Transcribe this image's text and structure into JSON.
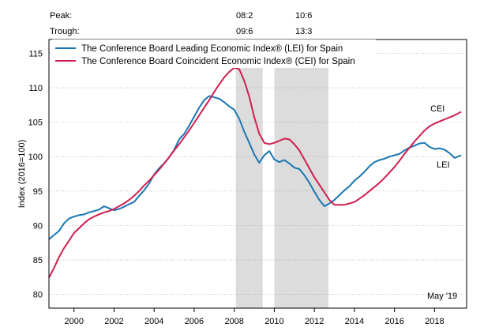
{
  "header": {
    "peak_label": "Peak:",
    "trough_label": "Trough:",
    "peaks": [
      "08:2",
      "10:6"
    ],
    "troughs": [
      "09:6",
      "13:3"
    ]
  },
  "chart_data": {
    "type": "line",
    "ylabel": "Index (2016=100)",
    "note": "May '19",
    "xlim": [
      1998.75,
      2019.6
    ],
    "ylim": [
      78,
      117
    ],
    "x_ticks": [
      2000,
      2002,
      2004,
      2006,
      2008,
      2010,
      2012,
      2014,
      2016,
      2018
    ],
    "y_ticks": [
      80,
      85,
      90,
      95,
      100,
      105,
      110,
      115
    ],
    "recessions": [
      [
        2008.08,
        2009.42
      ],
      [
        2010.0,
        2012.7
      ]
    ],
    "legend": {
      "position": "top-left",
      "entries": [
        "The Conference Board Leading Economic Index® (LEI) for Spain",
        "The Conference Board Coincident Economic Index® (CEI) for Spain"
      ]
    },
    "series": [
      {
        "name": "LEI",
        "color": "#1a76b3",
        "x": [
          1998.75,
          1999.0,
          1999.25,
          1999.5,
          1999.75,
          2000.0,
          2000.25,
          2000.5,
          2000.75,
          2001.0,
          2001.25,
          2001.5,
          2001.75,
          2002.0,
          2002.25,
          2002.5,
          2002.75,
          2003.0,
          2003.25,
          2003.5,
          2003.75,
          2004.0,
          2004.25,
          2004.5,
          2004.75,
          2005.0,
          2005.25,
          2005.5,
          2005.75,
          2006.0,
          2006.25,
          2006.5,
          2006.75,
          2007.0,
          2007.25,
          2007.5,
          2007.75,
          2008.0,
          2008.25,
          2008.5,
          2008.75,
          2009.0,
          2009.25,
          2009.5,
          2009.75,
          2010.0,
          2010.25,
          2010.5,
          2010.75,
          2011.0,
          2011.25,
          2011.5,
          2011.75,
          2012.0,
          2012.25,
          2012.5,
          2012.75,
          2013.0,
          2013.25,
          2013.5,
          2013.75,
          2014.0,
          2014.25,
          2014.5,
          2014.75,
          2015.0,
          2015.25,
          2015.5,
          2015.75,
          2016.0,
          2016.25,
          2016.5,
          2016.75,
          2017.0,
          2017.25,
          2017.5,
          2017.75,
          2018.0,
          2018.25,
          2018.5,
          2018.75,
          2019.0,
          2019.33
        ],
        "values": [
          88.0,
          88.6,
          89.2,
          90.3,
          91.0,
          91.3,
          91.5,
          91.6,
          91.9,
          92.1,
          92.3,
          92.8,
          92.5,
          92.2,
          92.4,
          92.7,
          93.1,
          93.4,
          94.3,
          95.1,
          96.1,
          97.4,
          98.3,
          99.0,
          99.9,
          101.0,
          102.5,
          103.3,
          104.5,
          105.8,
          107.1,
          108.2,
          108.8,
          108.6,
          108.4,
          107.9,
          107.3,
          106.8,
          105.5,
          103.6,
          102.0,
          100.3,
          99.1,
          100.2,
          100.8,
          99.6,
          99.2,
          99.5,
          99.0,
          98.4,
          98.2,
          97.3,
          96.2,
          94.9,
          93.7,
          92.8,
          93.2,
          93.7,
          94.4,
          95.1,
          95.7,
          96.5,
          97.1,
          97.8,
          98.6,
          99.2,
          99.5,
          99.7,
          100.0,
          100.2,
          100.4,
          100.9,
          101.3,
          101.6,
          101.9,
          102.0,
          101.4,
          101.1,
          101.2,
          101.0,
          100.5,
          99.8,
          100.2
        ]
      },
      {
        "name": "CEI",
        "color": "#cf1f4f",
        "x": [
          1998.75,
          1999.0,
          1999.25,
          1999.5,
          1999.75,
          2000.0,
          2000.25,
          2000.5,
          2000.75,
          2001.0,
          2001.25,
          2001.5,
          2001.75,
          2002.0,
          2002.25,
          2002.5,
          2002.75,
          2003.0,
          2003.25,
          2003.5,
          2003.75,
          2004.0,
          2004.25,
          2004.5,
          2004.75,
          2005.0,
          2005.25,
          2005.5,
          2005.75,
          2006.0,
          2006.25,
          2006.5,
          2006.75,
          2007.0,
          2007.25,
          2007.5,
          2007.75,
          2008.0,
          2008.25,
          2008.5,
          2008.75,
          2009.0,
          2009.25,
          2009.5,
          2009.75,
          2010.0,
          2010.25,
          2010.5,
          2010.75,
          2011.0,
          2011.25,
          2011.5,
          2011.75,
          2012.0,
          2012.25,
          2012.5,
          2012.75,
          2013.0,
          2013.25,
          2013.5,
          2013.75,
          2014.0,
          2014.25,
          2014.5,
          2014.75,
          2015.0,
          2015.25,
          2015.5,
          2015.75,
          2016.0,
          2016.25,
          2016.5,
          2016.75,
          2017.0,
          2017.25,
          2017.5,
          2017.75,
          2018.0,
          2018.25,
          2018.5,
          2018.75,
          2019.0,
          2019.33
        ],
        "values": [
          82.4,
          83.8,
          85.4,
          86.7,
          87.8,
          88.9,
          89.6,
          90.3,
          90.9,
          91.3,
          91.6,
          91.9,
          92.1,
          92.4,
          92.8,
          93.2,
          93.7,
          94.3,
          95.0,
          95.8,
          96.5,
          97.3,
          98.1,
          99.0,
          99.9,
          100.9,
          101.8,
          102.8,
          103.8,
          104.9,
          106.0,
          107.1,
          108.2,
          109.4,
          110.5,
          111.5,
          112.3,
          112.9,
          112.7,
          111.0,
          108.7,
          105.7,
          103.3,
          102.0,
          101.8,
          102.0,
          102.3,
          102.6,
          102.5,
          101.8,
          100.9,
          99.6,
          98.3,
          97.0,
          95.9,
          94.8,
          93.7,
          93.0,
          93.0,
          93.0,
          93.2,
          93.4,
          93.9,
          94.4,
          95.0,
          95.6,
          96.2,
          96.9,
          97.7,
          98.5,
          99.4,
          100.4,
          101.3,
          102.2,
          103.0,
          103.8,
          104.4,
          104.8,
          105.1,
          105.4,
          105.7,
          106.0,
          106.5
        ]
      }
    ],
    "series_labels": [
      "CEI",
      "LEI"
    ]
  }
}
